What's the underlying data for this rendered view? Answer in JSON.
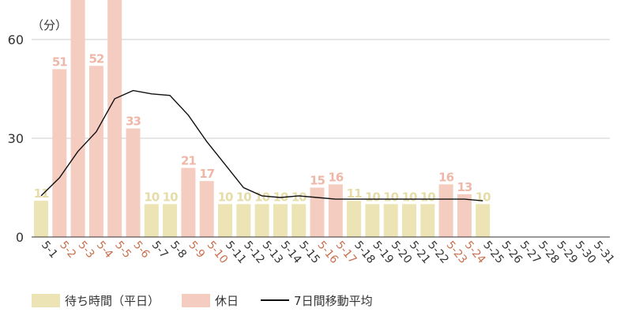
{
  "chart_data": {
    "type": "bar",
    "unit_label": "（分）",
    "ylim": [
      0,
      60
    ],
    "y_ticks": [
      0,
      30,
      60
    ],
    "grid": true,
    "categories": [
      "5-1",
      "5-2",
      "5-3",
      "5-4",
      "5-5",
      "5-6",
      "5-7",
      "5-8",
      "5-9",
      "5-10",
      "5-11",
      "5-12",
      "5-13",
      "5-14",
      "5-15",
      "5-16",
      "5-17",
      "5-18",
      "5-19",
      "5-20",
      "5-21",
      "5-22",
      "5-23",
      "5-24",
      "5-25",
      "5-26",
      "5-27",
      "5-28",
      "5-29",
      "5-30",
      "5-31"
    ],
    "holidays": [
      "5-2",
      "5-3",
      "5-4",
      "5-5",
      "5-6",
      "5-9",
      "5-10",
      "5-16",
      "5-17",
      "5-23",
      "5-24"
    ],
    "series": [
      {
        "name": "待ち時間（平日）",
        "kind": "bar",
        "color": "#ece4b4",
        "label_color": "#e6dca8",
        "values": [
          11,
          null,
          null,
          null,
          null,
          null,
          10,
          10,
          null,
          null,
          10,
          10,
          10,
          10,
          10,
          null,
          null,
          11,
          10,
          10,
          10,
          10,
          null,
          null,
          10,
          null,
          null,
          null,
          null,
          null,
          null
        ]
      },
      {
        "name": "休日",
        "kind": "bar",
        "color": "#f4ccc0",
        "label_color": "#eeb8a8",
        "values": [
          null,
          51,
          75,
          52,
          75,
          33,
          null,
          null,
          21,
          17,
          null,
          null,
          null,
          null,
          null,
          15,
          16,
          null,
          null,
          null,
          null,
          null,
          16,
          13,
          null,
          null,
          null,
          null,
          null,
          null,
          null
        ],
        "labels": [
          null,
          "51",
          null,
          "52",
          null,
          "33",
          null,
          null,
          "21",
          "17",
          null,
          null,
          null,
          null,
          null,
          "15",
          "16",
          null,
          null,
          null,
          null,
          null,
          "16",
          "13",
          null,
          null,
          null,
          null,
          null,
          null,
          null
        ]
      },
      {
        "name": "7日間移動平均",
        "kind": "line",
        "color": "#111111",
        "values": [
          12.5,
          18,
          26,
          32,
          42,
          44.5,
          43.5,
          43,
          37,
          29,
          22,
          15,
          12.5,
          12,
          12.5,
          12,
          11.5,
          11.5,
          11.5,
          11.5,
          11.5,
          11.5,
          11.5,
          11.5,
          11,
          null,
          null,
          null,
          null,
          null,
          null
        ]
      }
    ],
    "colors": {
      "weekday_tick": "#333333",
      "holiday_tick": "#c8704e",
      "axis": "#333333",
      "grid": "#cccccc"
    }
  },
  "legend": {
    "weekday": "待ち時間（平日）",
    "holiday": "休日",
    "average": "7日間移動平均"
  }
}
